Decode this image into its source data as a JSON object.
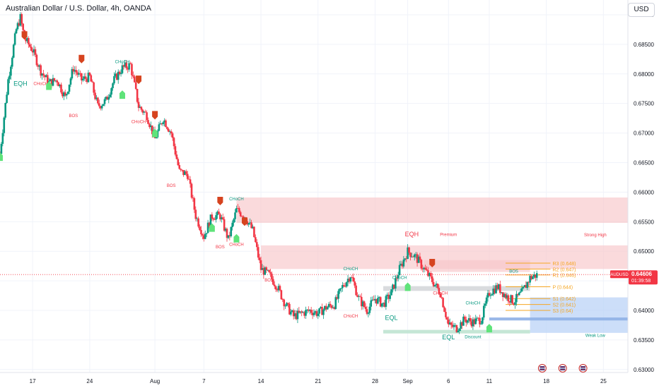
{
  "header": {
    "title": "Australian Dollar / U.S. Dollar, 4h, OANDA",
    "currency_button": "USD"
  },
  "price_tag": {
    "symbol": "AUDUSD",
    "price": "0.64606",
    "countdown": "01:39:58",
    "color": "#f23645"
  },
  "colors": {
    "up": "#089981",
    "down": "#f23645",
    "supply_zone": "#f7c6c9",
    "demand_zone": "#bbd3f7",
    "pivot_line": "#f5a623",
    "structure_bullish": "#089981",
    "structure_bearish": "#f23645",
    "bull_marker": "#5fe37a",
    "bear_marker": "#d6431f"
  },
  "chart_data": {
    "type": "candlestick",
    "symbol": "AUDUSD",
    "timeframe": "4h",
    "ylim": [
      0.6295,
      0.6925
    ],
    "y_ticks": [
      "0.63000",
      "0.63500",
      "0.64000",
      "0.64500",
      "0.65000",
      "0.65500",
      "0.66000",
      "0.66500",
      "0.67000",
      "0.67500",
      "0.68000",
      "0.68500",
      "0.69000"
    ],
    "x_ticks": [
      {
        "label": "17",
        "x": "Jul 17"
      },
      {
        "label": "24",
        "x": "Jul 24"
      },
      {
        "label": "Aug",
        "x": "Aug 1"
      },
      {
        "label": "7",
        "x": "Aug 7"
      },
      {
        "label": "14",
        "x": "Aug 14"
      },
      {
        "label": "21",
        "x": "Aug 21"
      },
      {
        "label": "28",
        "x": "Aug 28"
      },
      {
        "label": "Sep",
        "x": "Sep 1"
      },
      {
        "label": "6",
        "x": "Sep 6"
      },
      {
        "label": "11",
        "x": "Sep 11"
      },
      {
        "label": "18",
        "x": "Sep 18"
      },
      {
        "label": "25",
        "x": "Sep 25"
      }
    ],
    "x_domain": [
      "Jul 13",
      "Sep 28"
    ],
    "last_price": 0.64606,
    "price_path": [
      [
        "Jul 13",
        0.6665
      ],
      [
        "Jul 14",
        0.679
      ],
      [
        "Jul 15",
        0.6875
      ],
      [
        "Jul 15 12:00",
        0.6895
      ],
      [
        "Jul 16",
        0.686
      ],
      [
        "Jul 17",
        0.684
      ],
      [
        "Jul 18",
        0.6805
      ],
      [
        "Jul 19",
        0.6785
      ],
      [
        "Jul 20",
        0.679
      ],
      [
        "Jul 21",
        0.676
      ],
      [
        "Jul 22",
        0.681
      ],
      [
        "Jul 23",
        0.679
      ],
      [
        "Jul 24",
        0.6795
      ],
      [
        "Jul 25",
        0.6745
      ],
      [
        "Jul 26",
        0.6755
      ],
      [
        "Jul 27",
        0.679
      ],
      [
        "Jul 28",
        0.681
      ],
      [
        "Jul 29",
        0.6815
      ],
      [
        "Jul 30",
        0.6745
      ],
      [
        "Jul 31",
        0.673
      ],
      [
        "Aug 1",
        0.669
      ],
      [
        "Aug 2",
        0.6725
      ],
      [
        "Aug 3",
        0.67
      ],
      [
        "Aug 4",
        0.6635
      ],
      [
        "Aug 5",
        0.663
      ],
      [
        "Aug 6",
        0.656
      ],
      [
        "Aug 7",
        0.6525
      ],
      [
        "Aug 8",
        0.656
      ],
      [
        "Aug 9",
        0.656
      ],
      [
        "Aug 10",
        0.652
      ],
      [
        "Aug 11",
        0.657
      ],
      [
        "Aug 12",
        0.656
      ],
      [
        "Aug 13",
        0.6535
      ],
      [
        "Aug 14",
        0.647
      ],
      [
        "Aug 15",
        0.646
      ],
      [
        "Aug 16",
        0.644
      ],
      [
        "Aug 17",
        0.641
      ],
      [
        "Aug 18",
        0.639
      ],
      [
        "Aug 19",
        0.6395
      ],
      [
        "Aug 20",
        0.64
      ],
      [
        "Aug 21",
        0.6395
      ],
      [
        "Aug 22",
        0.6405
      ],
      [
        "Aug 23",
        0.641
      ],
      [
        "Aug 24",
        0.644
      ],
      [
        "Aug 25",
        0.646
      ],
      [
        "Aug 26",
        0.642
      ],
      [
        "Aug 27",
        0.64
      ],
      [
        "Aug 28",
        0.642
      ],
      [
        "Aug 29",
        0.641
      ],
      [
        "Aug 30",
        0.643
      ],
      [
        "Aug 31",
        0.647
      ],
      [
        "Sep 1",
        0.65
      ],
      [
        "Sep 2",
        0.649
      ],
      [
        "Sep 3",
        0.647
      ],
      [
        "Sep 4",
        0.645
      ],
      [
        "Sep 5",
        0.643
      ],
      [
        "Sep 6",
        0.6375
      ],
      [
        "Sep 7",
        0.637
      ],
      [
        "Sep 8",
        0.6385
      ],
      [
        "Sep 9",
        0.638
      ],
      [
        "Sep 10",
        0.6385
      ],
      [
        "Sep 11",
        0.643
      ],
      [
        "Sep 12",
        0.644
      ],
      [
        "Sep 13",
        0.6425
      ],
      [
        "Sep 14",
        0.6415
      ],
      [
        "Sep 15",
        0.643
      ],
      [
        "Sep 16",
        0.6455
      ],
      [
        "Sep 17",
        0.6461
      ]
    ],
    "zones": [
      {
        "type": "supply",
        "from": "Aug 11",
        "to": "Sep 28",
        "top": 0.6591,
        "bottom": 0.6548
      },
      {
        "type": "supply",
        "from": "Aug 14",
        "to": "Sep 28",
        "top": 0.651,
        "bottom": 0.647
      },
      {
        "type": "supply",
        "from": "Sep 3",
        "to": "Sep 16",
        "top": 0.6485,
        "bottom": 0.6465
      },
      {
        "type": "neutral",
        "from": "Aug 29",
        "to": "Sep 16",
        "top": 0.6441,
        "bottom": 0.6433
      },
      {
        "type": "demand",
        "from": "Sep 16",
        "to": "Sep 28",
        "top": 0.6422,
        "bottom": 0.6362
      },
      {
        "type": "demand_dark",
        "from": "Sep 11",
        "to": "Sep 28",
        "top": 0.6388,
        "bottom": 0.6383
      },
      {
        "type": "demand_green",
        "from": "Aug 29",
        "to": "Sep 16",
        "top": 0.6367,
        "bottom": 0.6361
      }
    ],
    "pivots": [
      {
        "label": "R3 (0.648)",
        "value": 0.648
      },
      {
        "label": "R2 (0.647)",
        "value": 0.647
      },
      {
        "label": "R1 (0.646)",
        "value": 0.646
      },
      {
        "label": "P (0.644)",
        "value": 0.644
      },
      {
        "label": "S1 (0.642)",
        "value": 0.642
      },
      {
        "label": "S2 (0.641)",
        "value": 0.641
      },
      {
        "label": "S3 (0.64)",
        "value": 0.64
      }
    ],
    "annotations": [
      {
        "text": "EQH",
        "x": "Jul 15 12:00",
        "y": 0.678,
        "kind": "bull"
      },
      {
        "text": "CHoCH",
        "x": "Jul 18",
        "y": 0.6781,
        "kind": "bear"
      },
      {
        "text": "BOS",
        "x": "Jul 22",
        "y": 0.6727,
        "kind": "bear"
      },
      {
        "text": "CHoCH",
        "x": "Jul 28",
        "y": 0.6818,
        "kind": "bull"
      },
      {
        "text": "CHoCH",
        "x": "Jul 30",
        "y": 0.6717,
        "kind": "bear"
      },
      {
        "text": "BOS",
        "x": "Aug 3",
        "y": 0.6609,
        "kind": "bear"
      },
      {
        "text": "BOS",
        "x": "Aug 9",
        "y": 0.6505,
        "kind": "bear"
      },
      {
        "text": "CHoCH",
        "x": "Aug 11",
        "y": 0.6586,
        "kind": "bull"
      },
      {
        "text": "CHoCH",
        "x": "Aug 11",
        "y": 0.6509,
        "kind": "bear"
      },
      {
        "text": "BOS",
        "x": "Aug 15",
        "y": 0.6449,
        "kind": "bear"
      },
      {
        "text": "CHoCH",
        "x": "Aug 25",
        "y": 0.6468,
        "kind": "bull"
      },
      {
        "text": "CHoCH",
        "x": "Aug 25",
        "y": 0.6388,
        "kind": "bear"
      },
      {
        "text": "CHoCH",
        "x": "Aug 31",
        "y": 0.6453,
        "kind": "bull"
      },
      {
        "text": "EQL",
        "x": "Aug 30",
        "y": 0.6384,
        "kind": "bull"
      },
      {
        "text": "EQH",
        "x": "Sep 1 12:00",
        "y": 0.6525,
        "kind": "bear"
      },
      {
        "text": "Premium",
        "x": "Sep 6",
        "y": 0.6526,
        "kind": "bear"
      },
      {
        "text": "Strong High",
        "x": "Sep 24",
        "y": 0.6525,
        "kind": "bear"
      },
      {
        "text": "CHoCH",
        "x": "Sep 5",
        "y": 0.6427,
        "kind": "bear"
      },
      {
        "text": "CHoCH",
        "x": "Sep 9",
        "y": 0.641,
        "kind": "bull"
      },
      {
        "text": "BOS",
        "x": "Sep 14",
        "y": 0.6464,
        "kind": "bull"
      },
      {
        "text": "EQL",
        "x": "Sep 6",
        "y": 0.6351,
        "kind": "bull"
      },
      {
        "text": "Discount",
        "x": "Sep 9",
        "y": 0.6353,
        "kind": "bull"
      },
      {
        "text": "Weak Low",
        "x": "Sep 24",
        "y": 0.6355,
        "kind": "bull"
      }
    ],
    "markers": [
      {
        "type": "bull",
        "x": "Jul 13",
        "y": 0.666
      },
      {
        "type": "bear",
        "x": "Jul 16",
        "y": 0.6865
      },
      {
        "type": "bull",
        "x": "Jul 19",
        "y": 0.678
      },
      {
        "type": "bear",
        "x": "Jul 23",
        "y": 0.6825
      },
      {
        "type": "bull",
        "x": "Jul 28",
        "y": 0.6765
      },
      {
        "type": "bear",
        "x": "Jul 30",
        "y": 0.679
      },
      {
        "type": "bull",
        "x": "Aug 1",
        "y": 0.67
      },
      {
        "type": "bear",
        "x": "Aug 1",
        "y": 0.673
      },
      {
        "type": "bull",
        "x": "Aug 8",
        "y": 0.654
      },
      {
        "type": "bear",
        "x": "Aug 9",
        "y": 0.6585
      },
      {
        "type": "bull",
        "x": "Aug 11",
        "y": 0.6522
      },
      {
        "type": "bear",
        "x": "Aug 12",
        "y": 0.655
      },
      {
        "type": "bull",
        "x": "Sep 1",
        "y": 0.644
      },
      {
        "type": "bear",
        "x": "Sep 4",
        "y": 0.648
      },
      {
        "type": "bull",
        "x": "Sep 11",
        "y": 0.637
      }
    ]
  }
}
